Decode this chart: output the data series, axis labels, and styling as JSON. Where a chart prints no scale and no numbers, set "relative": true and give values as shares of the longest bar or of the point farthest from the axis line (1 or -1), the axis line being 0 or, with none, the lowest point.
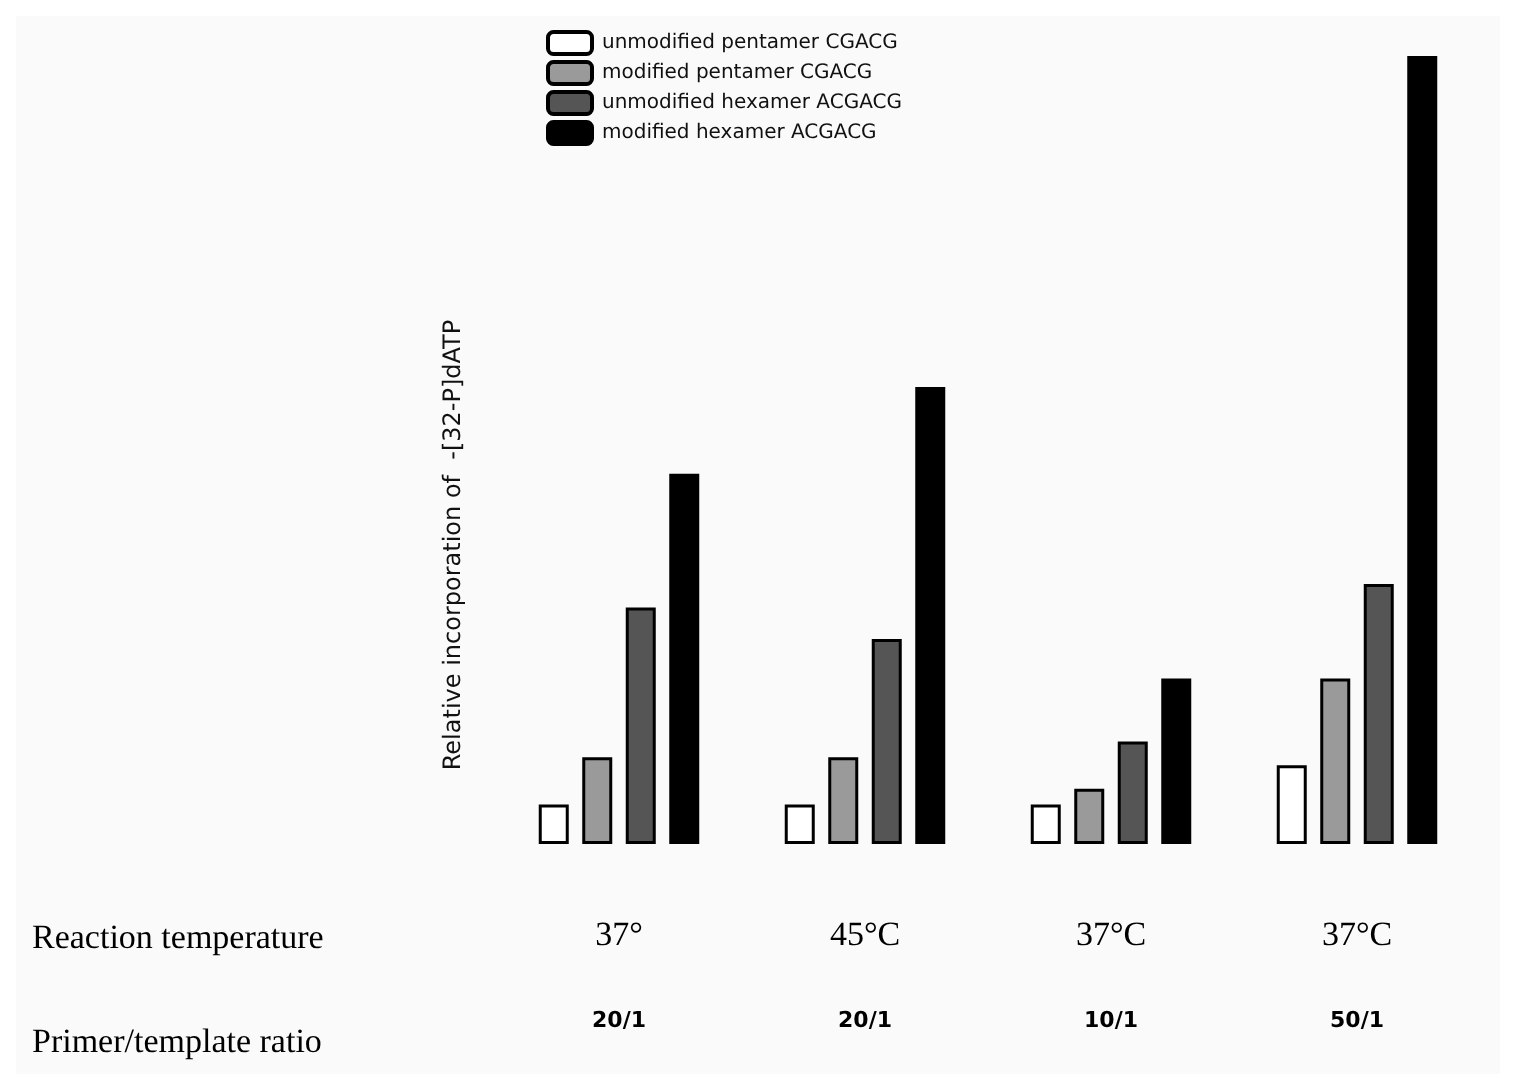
{
  "chart_data": {
    "type": "bar",
    "relative": true,
    "ylabel": "Relative incorporation of  -[32-P]dATP",
    "categories": [
      "37°\n20/1",
      "45°C\n20/1",
      "37°C\n10/1",
      "37°C\n50/1"
    ],
    "series": [
      {
        "name": "unmodified pentamer CGACG",
        "color": "#ffffff",
        "values": [
          0.05,
          0.05,
          0.05,
          0.1
        ]
      },
      {
        "name": "modified pentamer CGACG",
        "color": "#9a9a9a",
        "values": [
          0.11,
          0.11,
          0.07,
          0.21
        ]
      },
      {
        "name": "unmodified hexamer ACGACG",
        "color": "#555555",
        "values": [
          0.3,
          0.26,
          0.13,
          0.33
        ]
      },
      {
        "name": "modified hexamer ACGACG",
        "color": "#000000",
        "values": [
          0.47,
          0.58,
          0.21,
          1.0
        ]
      }
    ],
    "annotations": [
      "Reaction temperature",
      "Primer/template ratio"
    ],
    "legend": "top",
    "grid": false
  }
}
